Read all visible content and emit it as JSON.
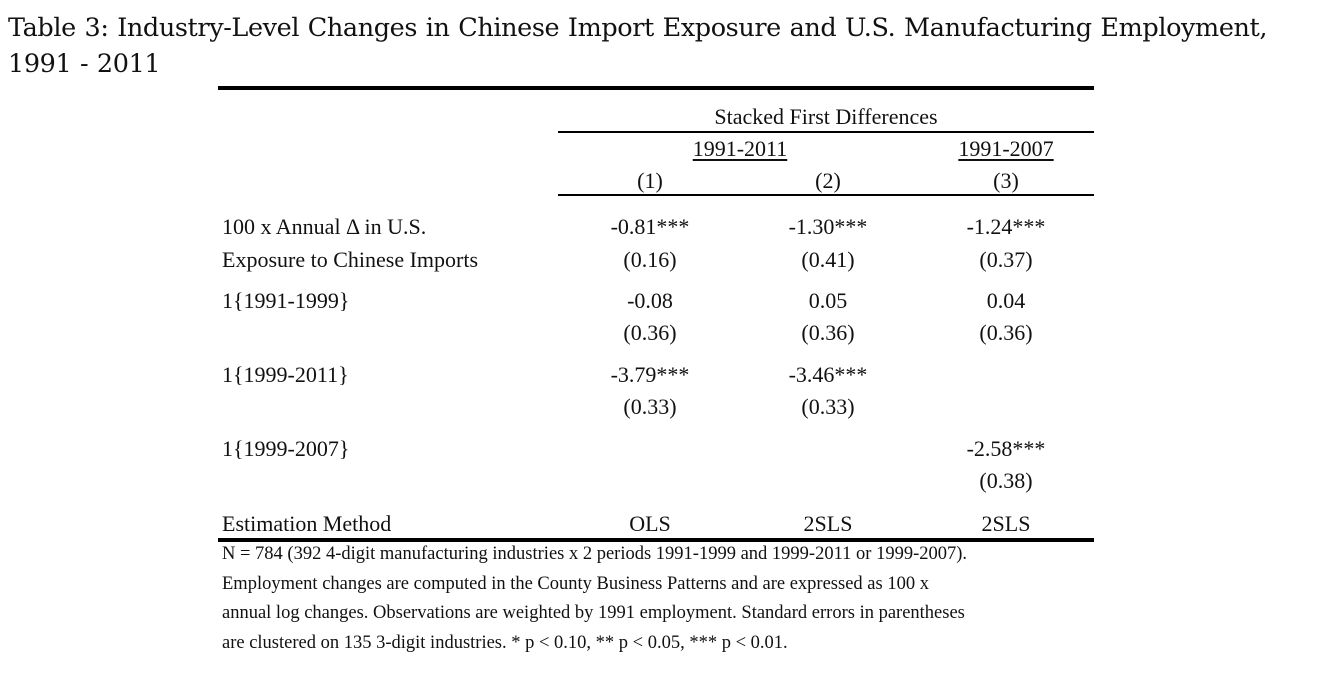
{
  "caption": {
    "line1": "Table 3: Industry-Level Changes in Chinese Import Exposure and U.S. Manufacturing Employment,",
    "line2": "1991 - 2011"
  },
  "table": {
    "spanner": "Stacked First Differences",
    "period_a": "1991-2011",
    "period_b": "1991-2007",
    "col_nums": [
      "(1)",
      "(2)",
      "(3)"
    ],
    "rows": [
      {
        "label_line1": "100 x Annual Δ in U.S.",
        "label_line2": "Exposure to Chinese Imports",
        "coef": [
          "-0.81***",
          "-1.30***",
          "-1.24***"
        ],
        "se": [
          "(0.16)",
          "(0.41)",
          "(0.37)"
        ]
      },
      {
        "label_line1": "1{1991-1999}",
        "label_line2": "",
        "coef": [
          "-0.08",
          "0.05",
          "0.04"
        ],
        "se": [
          "(0.36)",
          "(0.36)",
          "(0.36)"
        ]
      },
      {
        "label_line1": "1{1999-2011}",
        "label_line2": "",
        "coef": [
          "-3.79***",
          "-3.46***",
          ""
        ],
        "se": [
          "(0.33)",
          "(0.33)",
          ""
        ]
      },
      {
        "label_line1": "1{1999-2007}",
        "label_line2": "",
        "coef": [
          "",
          "",
          "-2.58***"
        ],
        "se": [
          "",
          "",
          "(0.38)"
        ]
      }
    ],
    "method_label": "Estimation Method",
    "methods": [
      "OLS",
      "2SLS",
      "2SLS"
    ]
  },
  "notes": [
    "N = 784 (392 4-digit manufacturing industries x 2 periods 1991-1999 and 1999-2011 or 1999-2007).",
    "Employment changes are computed in the County Business Patterns and are expressed as 100 x",
    "annual log changes. Observations are weighted by 1991 employment. Standard errors in parentheses",
    "are clustered on 135 3-digit industries. * p < 0.10, ** p < 0.05, *** p < 0.01."
  ]
}
